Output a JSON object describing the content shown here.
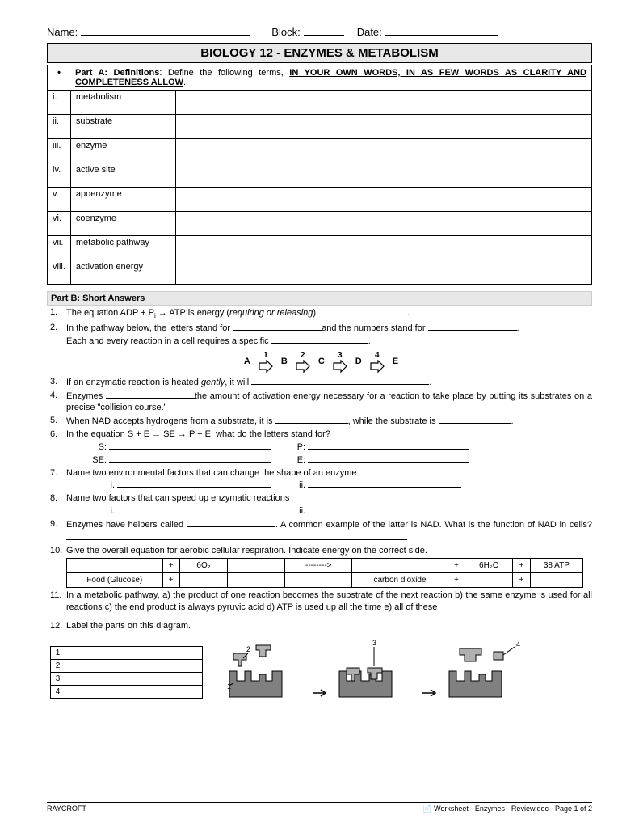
{
  "header": {
    "name_label": "Name:",
    "block_label": "Block:",
    "date_label": "Date:"
  },
  "title": "BIOLOGY 12 - ENZYMES & METABOLISM",
  "instructions": {
    "bullet": "•",
    "prefix": "Part A: Definitions",
    "text": ": Define the following terms, ",
    "emphasis": "IN YOUR OWN WORDS, IN AS FEW WORDS AS CLARITY AND COMPLETENESS ALLOW",
    "period": "."
  },
  "definitions": [
    {
      "num": "i.",
      "term": "metabolism"
    },
    {
      "num": "ii.",
      "term": "substrate"
    },
    {
      "num": "iii.",
      "term": "enzyme"
    },
    {
      "num": "iv.",
      "term": "active site"
    },
    {
      "num": "v.",
      "term": "apoenzyme"
    },
    {
      "num": "vi.",
      "term": "coenzyme"
    },
    {
      "num": "vii.",
      "term": "metabolic pathway"
    },
    {
      "num": "viii.",
      "term": "activation energy"
    }
  ],
  "partB_title": "Part B:  Short Answers",
  "q1": {
    "n": "1.",
    "t1": "The equation ADP + P",
    "sub": "i",
    "t2": " →  ATP is energy (",
    "ital": "requiring or releasing",
    "t3": ") ",
    "t4": "."
  },
  "q2": {
    "n": "2.",
    "t1": "In the pathway below, the letters stand for ",
    "t2": "and the numbers stand for ",
    "t3": ".",
    "t4": "Each and every reaction in a cell requires a specific ",
    "t5": "."
  },
  "pathway": {
    "labels": [
      "A",
      "B",
      "C",
      "D",
      "E"
    ],
    "numbers": [
      "1",
      "2",
      "3",
      "4"
    ]
  },
  "q3": {
    "n": "3.",
    "t1": "If an enzymatic reaction is heated ",
    "ital": "gently",
    "t2": ", it will ",
    "t3": "."
  },
  "q4": {
    "n": "4.",
    "t1": "Enzymes ",
    "t2": "the amount of activation energy necessary for a reaction to take place by putting its substrates on a precise \"collision course.\""
  },
  "q5": {
    "n": "5.",
    "t1": "When NAD accepts hydrogens from a substrate, it is ",
    "t2": ", while the substrate is ",
    "t3": "."
  },
  "q6": {
    "n": "6.",
    "t1": "In the equation S + E → SE → P + E, what do the letters stand for?",
    "s": "S:",
    "p": "P:",
    "se": "SE:",
    "e": "E:"
  },
  "q7": {
    "n": "7.",
    "t1": "Name two environmental factors that can change the shape of an enzyme.",
    "i": "i.",
    "ii": "ii."
  },
  "q8": {
    "n": "8.",
    "t1": "Name two factors that can speed up enzymatic reactions",
    "i": "i.",
    "ii": "ii."
  },
  "q9": {
    "n": "9.",
    "t1": "Enzymes have helpers called ",
    "t2": ".  A common example of the latter is NAD.  What is the function of NAD in cells? ",
    "t3": "."
  },
  "q10": {
    "n": "10.",
    "t1": "Give the overall equation for aerobic cellular respiration.  Indicate energy on the correct side."
  },
  "eq_table": {
    "r1": [
      "",
      "+",
      "6O₂",
      "",
      "-------->",
      "",
      "+",
      "6H₂O",
      "+",
      "38 ATP"
    ],
    "r2": [
      "Food (Glucose)",
      "+",
      "",
      "",
      "",
      "carbon dioxide",
      "+",
      "",
      "+",
      ""
    ]
  },
  "q11": {
    "n": "11.",
    "t1": "In a metabolic pathway, a) the product of one reaction becomes the substrate of the next reaction  b) the same enzyme is used for all reactions  c) the end product is always pyruvic acid  d) ATP is used up all the time  e) all of these"
  },
  "q12": {
    "n": "12.",
    "t1": "Label the parts on this diagram."
  },
  "label_nums": [
    "1",
    "2",
    "3",
    "4"
  ],
  "diagram_nums": [
    "1",
    "2",
    "3",
    "4"
  ],
  "footer": {
    "left": "RAYCROFT",
    "right": "Worksheet - Enzymes - Review.doc - Page 1 of 2"
  },
  "colors": {
    "enzyme": "#808080",
    "substrate": "#b0b0b0",
    "outline": "#000"
  }
}
